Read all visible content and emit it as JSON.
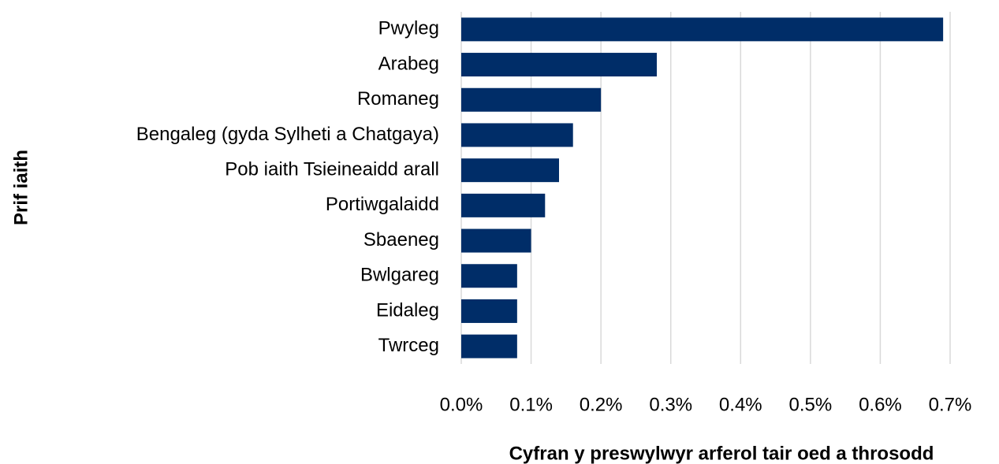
{
  "chart_data": {
    "type": "bar",
    "orientation": "horizontal",
    "x_label": "Cyfran y preswylwyr arferol tair oed a throsodd",
    "y_label": "Prif iaith",
    "categories": [
      "Pwyleg",
      "Arabeg",
      "Romaneg",
      "Bengaleg (gyda Sylheti a Chatgaya)",
      "Pob iaith Tsieineaidd arall",
      "Portiwgalaidd",
      "Sbaeneg",
      "Bwlgareg",
      "Eidaleg",
      "Twrceg"
    ],
    "values": [
      0.69,
      0.28,
      0.2,
      0.16,
      0.14,
      0.12,
      0.1,
      0.08,
      0.08,
      0.08
    ],
    "color": "#002d68",
    "xlim": [
      0,
      0.7
    ],
    "xticks": [
      {
        "value": 0,
        "label": "0.0%"
      },
      {
        "value": 0.1,
        "label": "0.1%"
      },
      {
        "value": 0.2,
        "label": "0.2%"
      },
      {
        "value": 0.3,
        "label": "0.3%"
      },
      {
        "value": 0.4,
        "label": "0.4%"
      },
      {
        "value": 0.5,
        "label": "0.5%"
      },
      {
        "value": 0.6,
        "label": "0.6%"
      },
      {
        "value": 0.7,
        "label": "0.7%"
      }
    ],
    "grid": true
  }
}
